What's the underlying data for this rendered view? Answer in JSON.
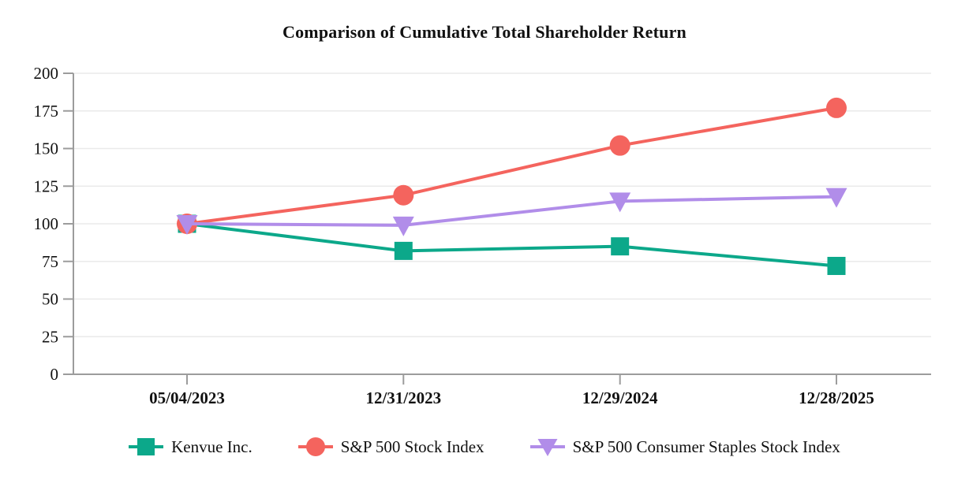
{
  "title": "Comparison of Cumulative Total Shareholder Return",
  "chart_data": {
    "type": "line",
    "title": "Comparison of Cumulative Total Shareholder Return",
    "x": [
      "05/04/2023",
      "12/31/2023",
      "12/29/2024",
      "12/28/2025"
    ],
    "series": [
      {
        "name": "Kenvue Inc.",
        "marker": "square",
        "color": "#0CA88A",
        "values": [
          100,
          82,
          85,
          72
        ]
      },
      {
        "name": "S&P 500 Stock Index",
        "marker": "circle",
        "color": "#F4645E",
        "values": [
          100,
          119,
          152,
          177
        ]
      },
      {
        "name": "S&P 500 Consumer Staples Stock Index",
        "marker": "triangle-down",
        "color": "#B18DE9",
        "values": [
          100,
          99,
          115,
          118
        ]
      }
    ],
    "xlabel": "",
    "ylabel": "",
    "ylim": [
      0,
      200
    ],
    "yticks": [
      0,
      25,
      50,
      75,
      100,
      125,
      150,
      175,
      200
    ],
    "grid": true,
    "legend_position": "bottom",
    "grid_color": "#EAEAEA",
    "axis_color": "#9C9C9C",
    "text_color": "#111111"
  }
}
